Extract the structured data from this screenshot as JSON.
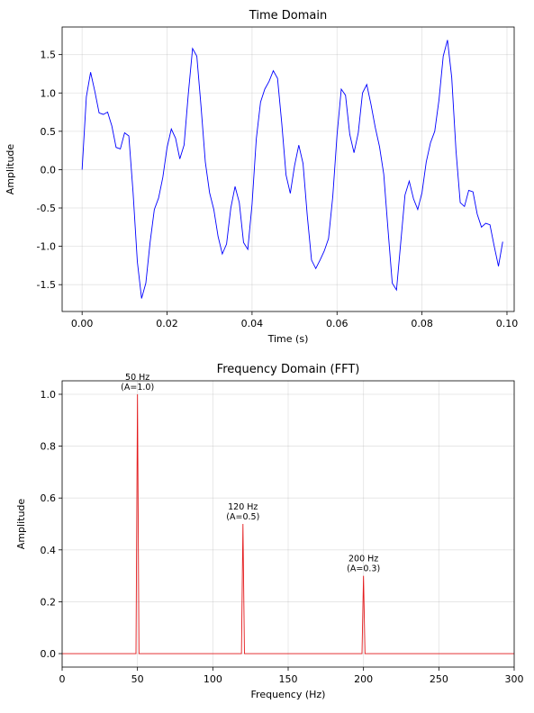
{
  "chart_data": [
    {
      "type": "line",
      "title": "Time Domain",
      "x_label": "Time (s)",
      "y_label": "Amplitude",
      "x": [
        0.0,
        0.001,
        0.002,
        0.003,
        0.004,
        0.005,
        0.006,
        0.007,
        0.008,
        0.009,
        0.01,
        0.011,
        0.012,
        0.013,
        0.014,
        0.015,
        0.016,
        0.017,
        0.018,
        0.019,
        0.02,
        0.021,
        0.022,
        0.023,
        0.024,
        0.025,
        0.026,
        0.027,
        0.028,
        0.029,
        0.03,
        0.031,
        0.032,
        0.033,
        0.034,
        0.035,
        0.036,
        0.037,
        0.038,
        0.039,
        0.04,
        0.041,
        0.042,
        0.043,
        0.044,
        0.045,
        0.046,
        0.047,
        0.048,
        0.049,
        0.05,
        0.051,
        0.052,
        0.053,
        0.054,
        0.055,
        0.056,
        0.057,
        0.058,
        0.059,
        0.06,
        0.061,
        0.062,
        0.063,
        0.064,
        0.065,
        0.066,
        0.067,
        0.068,
        0.069,
        0.07,
        0.071,
        0.072,
        0.073,
        0.074,
        0.075,
        0.076,
        0.077,
        0.078,
        0.079,
        0.08,
        0.081,
        0.082,
        0.083,
        0.084,
        0.085,
        0.086,
        0.087,
        0.088,
        0.089,
        0.09,
        0.091,
        0.092,
        0.093,
        0.094,
        0.095,
        0.096,
        0.097,
        0.098,
        0.099
      ],
      "series": [
        {
          "color": "#0000ff",
          "values": [
            0.0,
            0.95,
            1.27,
            1.02,
            0.74,
            0.72,
            0.75,
            0.57,
            0.29,
            0.27,
            0.48,
            0.44,
            -0.3,
            -1.2,
            -1.68,
            -1.48,
            -0.95,
            -0.52,
            -0.37,
            -0.1,
            0.29,
            0.53,
            0.41,
            0.14,
            0.32,
            0.99,
            1.58,
            1.48,
            0.82,
            0.1,
            -0.3,
            -0.52,
            -0.87,
            -1.1,
            -0.97,
            -0.5,
            -0.22,
            -0.43,
            -0.95,
            -1.04,
            -0.45,
            0.4,
            0.88,
            1.05,
            1.15,
            1.29,
            1.19,
            0.6,
            -0.07,
            -0.31,
            0.05,
            0.32,
            0.08,
            -0.6,
            -1.18,
            -1.29,
            -1.18,
            -1.06,
            -0.9,
            -0.35,
            0.45,
            1.05,
            0.97,
            0.46,
            0.22,
            0.48,
            1.0,
            1.11,
            0.85,
            0.55,
            0.3,
            -0.06,
            -0.78,
            -1.48,
            -1.57,
            -0.95,
            -0.33,
            -0.15,
            -0.38,
            -0.52,
            -0.3,
            0.1,
            0.35,
            0.5,
            0.91,
            1.48,
            1.69,
            1.2,
            0.25,
            -0.43,
            -0.48,
            -0.27,
            -0.29,
            -0.58,
            -0.75,
            -0.7,
            -0.72,
            -1.0,
            -1.26,
            -0.94
          ]
        }
      ],
      "xlim": [
        -0.0047,
        0.1017
      ],
      "ylim": [
        -1.85,
        1.86
      ],
      "xticks": [
        {
          "value": 0.0,
          "label": "0.00"
        },
        {
          "value": 0.02,
          "label": "0.02"
        },
        {
          "value": 0.04,
          "label": "0.04"
        },
        {
          "value": 0.06,
          "label": "0.06"
        },
        {
          "value": 0.08,
          "label": "0.08"
        },
        {
          "value": 0.1,
          "label": "0.10"
        }
      ],
      "yticks": [
        -1.5,
        {
          "value": -1.0,
          "label": "-1.0"
        },
        -0.5,
        {
          "value": 0.0,
          "label": "0.0"
        },
        0.5,
        {
          "value": 1.0,
          "label": "1.0"
        },
        1.5
      ],
      "grid": true
    },
    {
      "type": "line",
      "title": "Frequency Domain (FFT)",
      "x_label": "Frequency (Hz)",
      "y_label": "Amplitude",
      "x": [
        0,
        49,
        50,
        51,
        119,
        120,
        121,
        199,
        200,
        201,
        300
      ],
      "series": [
        {
          "color": "#e41a1c",
          "values": [
            0,
            0,
            1.0,
            0,
            0,
            0.5,
            0,
            0,
            0.3,
            0,
            0
          ]
        }
      ],
      "xlim": [
        0,
        300
      ],
      "ylim": [
        -0.052,
        1.052
      ],
      "xticks": [
        0,
        50,
        100,
        150,
        200,
        250,
        300
      ],
      "yticks": [
        {
          "value": 0.0,
          "label": "0.0"
        },
        0.2,
        0.4,
        0.6,
        0.8,
        {
          "value": 1.0,
          "label": "1.0"
        }
      ],
      "grid": true,
      "annotations": [
        {
          "x": 50,
          "y": 1.0,
          "lines": [
            "50 Hz",
            "(A=1.0)"
          ]
        },
        {
          "x": 120,
          "y": 0.5,
          "lines": [
            "120 Hz",
            "(A=0.5)"
          ]
        },
        {
          "x": 200,
          "y": 0.3,
          "lines": [
            "200 Hz",
            "(A=0.3)"
          ]
        }
      ]
    }
  ]
}
